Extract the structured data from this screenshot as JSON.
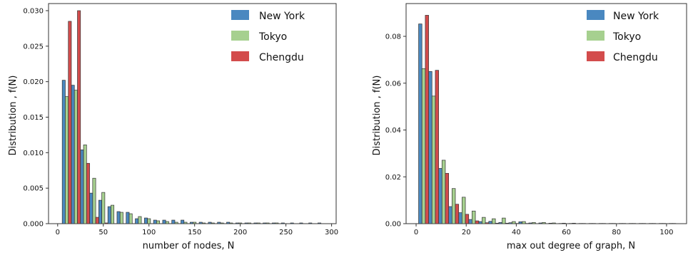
{
  "colors": {
    "New York": "#4a88c0",
    "Tokyo": "#a6d08f",
    "Chengdu": "#d34c4c",
    "bar_edge": "#333333",
    "axis": "#333333"
  },
  "chart_data": [
    {
      "type": "bar",
      "xlabel": "number of nodes, N",
      "ylabel": "Distribution , f(N)",
      "xlim": [
        -10,
        305
      ],
      "ylim": [
        0,
        0.031
      ],
      "xticks": [
        0,
        50,
        100,
        150,
        200,
        250,
        300
      ],
      "yticks": [
        0.0,
        0.005,
        0.01,
        0.015,
        0.02,
        0.025,
        0.03
      ],
      "ytick_labels": [
        "0.000",
        "0.005",
        "0.010",
        "0.015",
        "0.020",
        "0.025",
        "0.030"
      ],
      "grid": false,
      "legend_position": "top-right",
      "bin_edges": [
        5,
        15,
        25,
        35,
        45,
        55,
        65,
        75,
        85,
        95,
        105,
        115,
        125,
        135,
        145,
        155,
        165,
        175,
        185,
        195,
        205,
        215,
        225,
        235,
        245,
        255,
        265,
        275,
        285,
        295
      ],
      "series": [
        {
          "name": "New York",
          "values": [
            0.0202,
            0.0195,
            0.0104,
            0.0043,
            0.0033,
            0.0024,
            0.0017,
            0.0016,
            0.0007,
            0.0008,
            0.0005,
            0.0005,
            0.0005,
            0.0005,
            0.0002,
            0.0002,
            0.0002,
            0.0002,
            0.0002,
            0.0001,
            0.0001,
            0.0001,
            0.0001,
            0.0001,
            0.0001,
            0.0001,
            0.0001,
            0.0001,
            0.0001
          ]
        },
        {
          "name": "Tokyo",
          "values": [
            0.0179,
            0.0188,
            0.0111,
            0.0064,
            0.0044,
            0.0026,
            0.0016,
            0.0014,
            0.001,
            0.0007,
            0.0004,
            0.0003,
            0.0002,
            0.0002,
            0.0002,
            0.0001,
            0.0001,
            0.0001,
            0.0001,
            0.0001,
            0.0001,
            0.0001,
            0.0001,
            0.0001,
            0,
            0,
            0,
            0,
            0
          ]
        },
        {
          "name": "Chengdu",
          "values": [
            0.0285,
            0.03,
            0.0085,
            0.0009,
            0.0001,
            0,
            0,
            0,
            0,
            0,
            0,
            0,
            0,
            0,
            0,
            0,
            0,
            0,
            0,
            0,
            0,
            0,
            0,
            0,
            0,
            0,
            0,
            0,
            0
          ]
        }
      ]
    },
    {
      "type": "bar",
      "xlabel": "max out degree of graph, N",
      "ylabel": "Distribution , f(N)",
      "xlim": [
        -4,
        108
      ],
      "ylim": [
        0,
        0.094
      ],
      "xticks": [
        0,
        20,
        40,
        60,
        80,
        100
      ],
      "yticks": [
        0.0,
        0.02,
        0.04,
        0.06,
        0.08
      ],
      "ytick_labels": [
        "0.00",
        "0.02",
        "0.04",
        "0.06",
        "0.08"
      ],
      "grid": false,
      "legend_position": "top-right",
      "bin_edges": [
        1,
        5,
        9,
        13,
        17,
        21,
        25,
        29,
        33,
        37,
        41,
        45,
        49,
        53,
        57,
        61,
        65,
        69,
        73,
        77,
        81,
        85,
        89,
        93,
        97,
        101,
        105
      ],
      "series": [
        {
          "name": "New York",
          "values": [
            0.0853,
            0.065,
            0.0236,
            0.0073,
            0.0047,
            0.0018,
            0.0009,
            0.001,
            0.0005,
            0.0004,
            0.0008,
            0.0003,
            0.0003,
            0.0002,
            0.0001,
            0.0001,
            0.0001,
            0.0001,
            0.0001,
            0.0001,
            0.0001,
            0.0001,
            0.0001,
            0.0001,
            0.0001,
            0.0001
          ]
        },
        {
          "name": "Tokyo",
          "values": [
            0.0662,
            0.0545,
            0.0271,
            0.015,
            0.0113,
            0.0054,
            0.0027,
            0.0021,
            0.0024,
            0.0009,
            0.0009,
            0.0005,
            0.0005,
            0.0003,
            0.0002,
            0.0002,
            0.0001,
            0.0001,
            0.0001,
            0.0001,
            0.0001,
            0.0001,
            0.0001,
            0.0001,
            0.0001,
            0.0001
          ]
        },
        {
          "name": "Chengdu",
          "values": [
            0.089,
            0.0655,
            0.0215,
            0.0083,
            0.004,
            0.0012,
            0.0004,
            0.0002,
            0.0002,
            0.0001,
            0.0001,
            0,
            0,
            0,
            0,
            0,
            0,
            0,
            0,
            0,
            0,
            0,
            0,
            0,
            0,
            0
          ]
        }
      ]
    }
  ]
}
